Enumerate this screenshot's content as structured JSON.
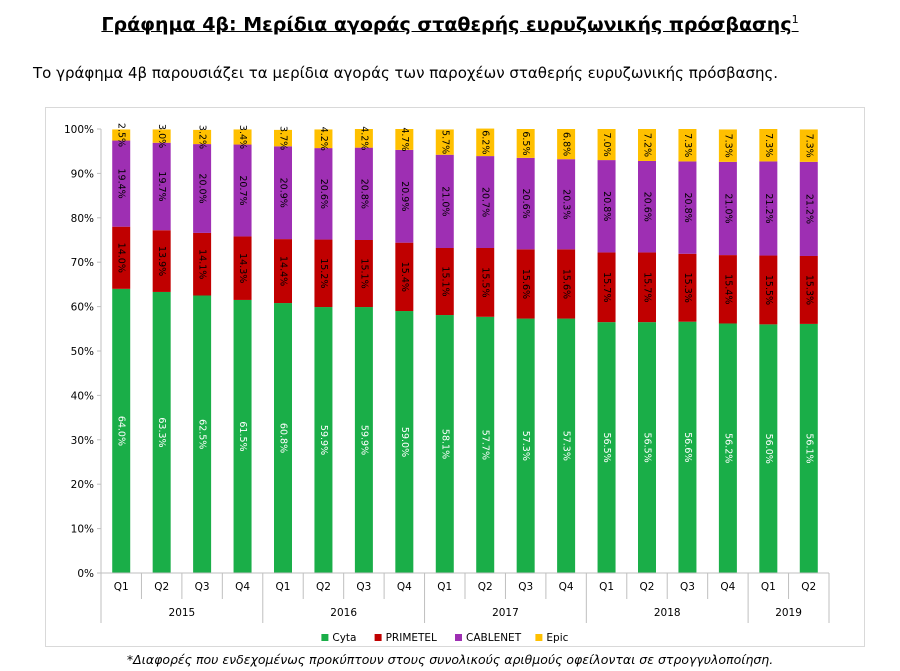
{
  "page": {
    "title": "Γράφημα 4β: Μερίδια αγοράς σταθερής ευρυζωνικής πρόσβασης",
    "title_footnote_mark": "1",
    "intro": "Το γράφημα 4β παρουσιάζει τα μερίδια αγοράς των παροχέων σταθερής ευρυζωνικής πρόσβασης.",
    "footnote": "*Διαφορές που ενδεχομένως προκύπτουν στους συνολικούς αριθμούς οφείλονται σε στρογγυλοποίηση."
  },
  "chart_data": {
    "type": "bar",
    "stacked": true,
    "ylim": [
      0,
      100
    ],
    "yticks": [
      "0%",
      "10%",
      "20%",
      "30%",
      "40%",
      "50%",
      "60%",
      "70%",
      "80%",
      "90%",
      "100%"
    ],
    "categories": [
      "Q1",
      "Q2",
      "Q3",
      "Q4",
      "Q1",
      "Q2",
      "Q3",
      "Q4",
      "Q1",
      "Q2",
      "Q3",
      "Q4",
      "Q1",
      "Q2",
      "Q3",
      "Q4",
      "Q1",
      "Q2"
    ],
    "groups": [
      {
        "label": "2015",
        "count": 4
      },
      {
        "label": "2016",
        "count": 4
      },
      {
        "label": "2017",
        "count": 4
      },
      {
        "label": "2018",
        "count": 4
      },
      {
        "label": "2019",
        "count": 2
      }
    ],
    "series": [
      {
        "name": "Cyta",
        "color": "#1aae48",
        "values": [
          64.0,
          63.3,
          62.5,
          61.5,
          60.8,
          59.9,
          59.9,
          59.0,
          58.1,
          57.7,
          57.3,
          57.3,
          56.5,
          56.5,
          56.6,
          56.2,
          56.0,
          56.1
        ],
        "labels": [
          "64.0%",
          "63.3%",
          "62.5%",
          "61.5%",
          "60.8%",
          "59.9%",
          "59.9%",
          "59.0%",
          "58.1%",
          "57.7%",
          "57.3%",
          "57.3%",
          "56.5%",
          "56.5%",
          "56.6%",
          "56.2%",
          "56.0%",
          "56.1%"
        ]
      },
      {
        "name": "PRIMETEL",
        "color": "#c00000",
        "values": [
          14.0,
          13.9,
          14.1,
          14.3,
          14.4,
          15.2,
          15.1,
          15.4,
          15.1,
          15.5,
          15.6,
          15.6,
          15.7,
          15.7,
          15.3,
          15.4,
          15.5,
          15.3
        ],
        "labels": [
          "14.0%",
          "13.9%",
          "14.1%",
          "14.3%",
          "14.4%",
          "15.2%",
          "15.1%",
          "15.4%",
          "15.1%",
          "15.5%",
          "15.6%",
          "15.6%",
          "15.7%",
          "15.7%",
          "15.3%",
          "15.4%",
          "15.5%",
          "15.3%"
        ]
      },
      {
        "name": "CABLENET",
        "color": "#9e2fb3",
        "values": [
          19.4,
          19.7,
          20.0,
          20.7,
          20.9,
          20.6,
          20.8,
          20.9,
          21.0,
          20.7,
          20.6,
          20.3,
          20.8,
          20.6,
          20.8,
          21.0,
          21.2,
          21.2
        ],
        "labels": [
          "19.4%",
          "19.7%",
          "20.0%",
          "20.7%",
          "20.9%",
          "20.6%",
          "20.8%",
          "20.9%",
          "21.0%",
          "20.7%",
          "20.6%",
          "20.3%",
          "20.8%",
          "20.6%",
          "20.8%",
          "21.0%",
          "21.2%",
          "21.2%"
        ]
      },
      {
        "name": "Epic",
        "color": "#ffc000",
        "values": [
          2.5,
          3.0,
          3.2,
          3.4,
          3.7,
          4.2,
          4.2,
          4.7,
          5.7,
          6.2,
          6.5,
          6.8,
          7.0,
          7.2,
          7.3,
          7.3,
          7.3,
          7.3
        ],
        "labels": [
          "2.5%",
          "3.0%",
          "3.2%",
          "3.4%",
          "3.7%",
          "4.2%",
          "4.2%",
          "4.7%",
          "5.7%",
          "6.2%",
          "6.5%",
          "6.8%",
          "7.0%",
          "7.2%",
          "7.3%",
          "7.3%",
          "7.3%",
          "7.3%"
        ]
      }
    ],
    "legend_position": "bottom",
    "grid": false
  }
}
